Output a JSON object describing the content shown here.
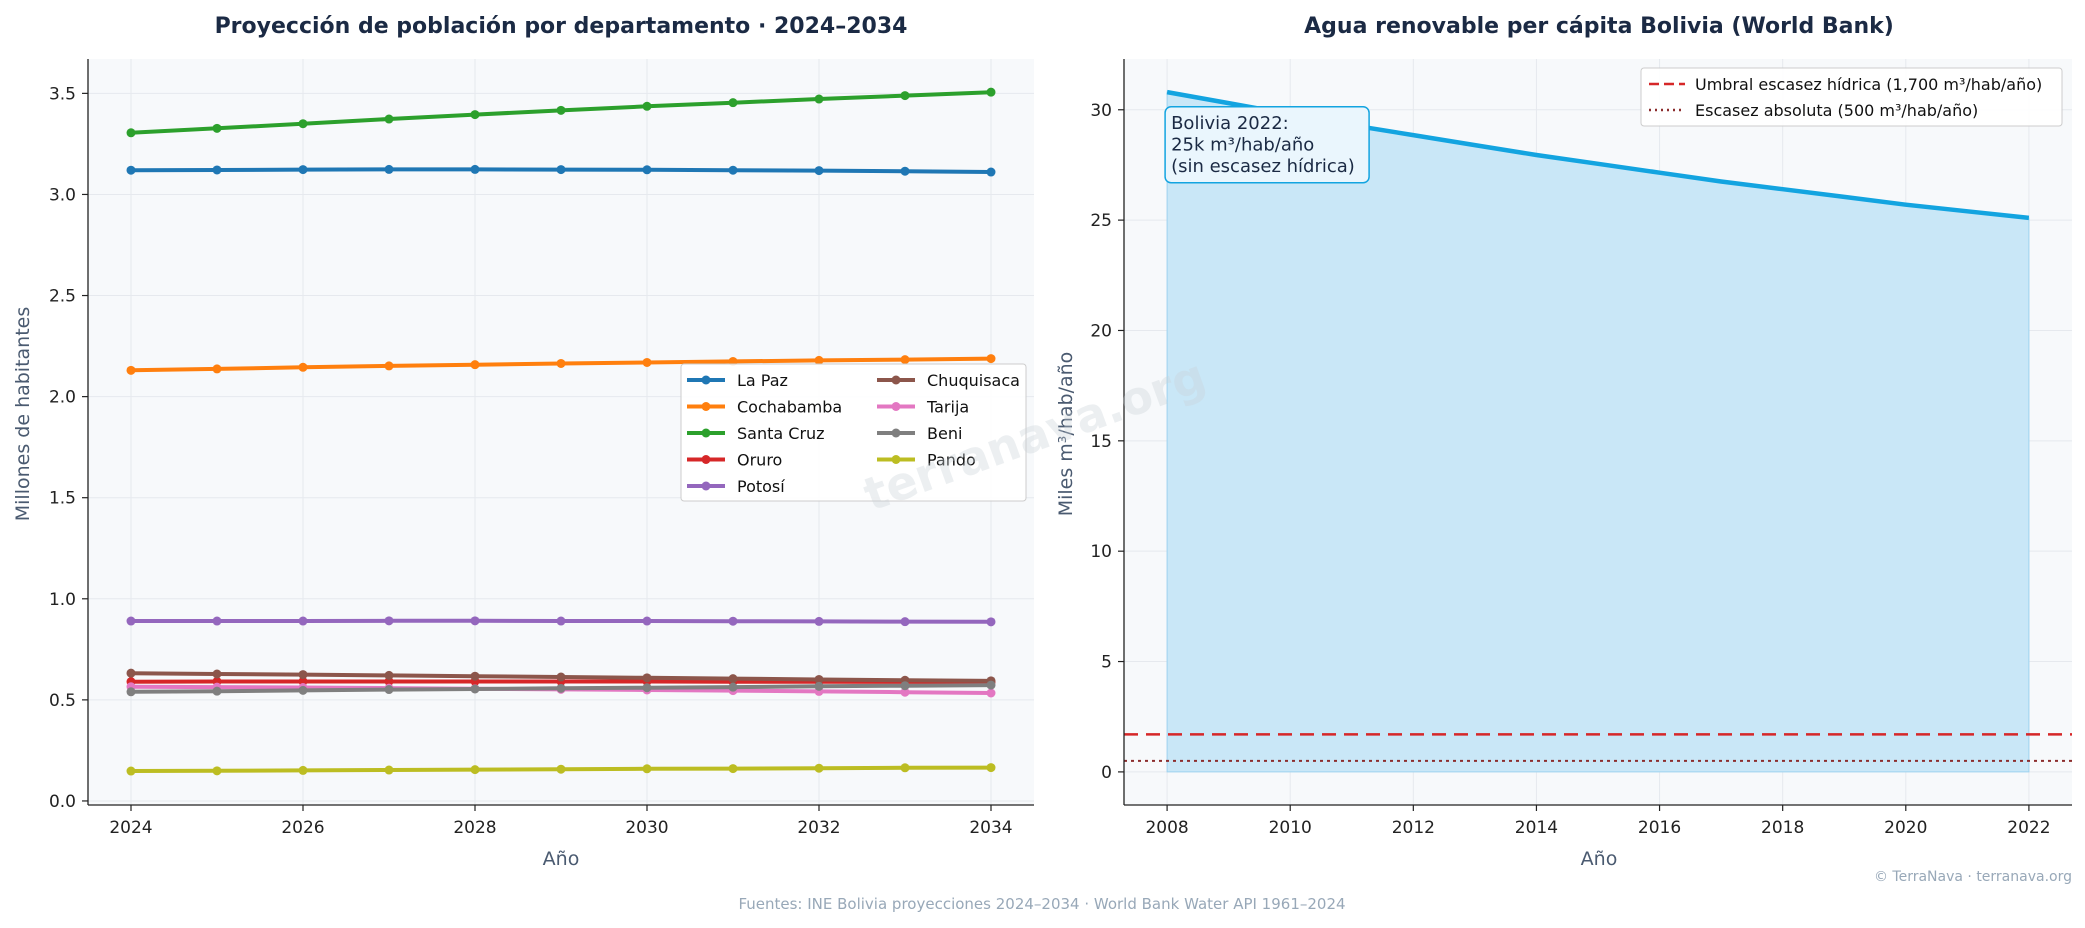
{
  "colors": {
    "plot_bg": "#f7f9fb",
    "title": "#1b2a44",
    "axis_label": "#4a5a70",
    "tick": "#222222",
    "footer": "#98a8b8",
    "fill": "#c9e7f7",
    "line": "#13a4e0",
    "threshold": "#d62728",
    "absolute": "#8c2d2d"
  },
  "chart_data": [
    {
      "type": "line",
      "title": "Proyección de población por departamento · 2024–2034",
      "xlabel": "Año",
      "ylabel": "Millones de habitantes",
      "xlim": [
        2023.5,
        2034.5
      ],
      "ylim": [
        -0.02,
        3.67
      ],
      "x_ticks": [
        2024,
        2026,
        2028,
        2030,
        2032,
        2034
      ],
      "y_ticks": [
        0.0,
        0.5,
        1.0,
        1.5,
        2.0,
        2.5,
        3.0,
        3.5
      ],
      "y_tick_labels": [
        "0.0",
        "0.5",
        "1.0",
        "1.5",
        "2.0",
        "2.5",
        "3.0",
        "3.5"
      ],
      "grid": true,
      "legend": "center-right",
      "x": [
        2024,
        2025,
        2026,
        2027,
        2028,
        2029,
        2030,
        2031,
        2032,
        2033,
        2034
      ],
      "series": [
        {
          "name": "La Paz",
          "color": "#1f77b4",
          "values": [
            3.12,
            3.121,
            3.123,
            3.124,
            3.124,
            3.123,
            3.122,
            3.12,
            3.118,
            3.115,
            3.111
          ]
        },
        {
          "name": "Cochabamba",
          "color": "#ff7f0e",
          "values": [
            2.13,
            2.137,
            2.145,
            2.152,
            2.158,
            2.164,
            2.169,
            2.174,
            2.179,
            2.183,
            2.188
          ]
        },
        {
          "name": "Santa Cruz",
          "color": "#2ca02c",
          "values": [
            3.305,
            3.327,
            3.35,
            3.373,
            3.395,
            3.416,
            3.436,
            3.454,
            3.472,
            3.489,
            3.506
          ]
        },
        {
          "name": "Oruro",
          "color": "#d62728",
          "values": [
            0.59,
            0.591,
            0.591,
            0.591,
            0.591,
            0.591,
            0.591,
            0.59,
            0.59,
            0.589,
            0.588
          ]
        },
        {
          "name": "Potosí",
          "color": "#9467bd",
          "values": [
            0.89,
            0.89,
            0.89,
            0.891,
            0.891,
            0.89,
            0.89,
            0.889,
            0.888,
            0.887,
            0.886
          ]
        },
        {
          "name": "Chuquisaca",
          "color": "#8c564b",
          "values": [
            0.632,
            0.628,
            0.625,
            0.621,
            0.617,
            0.613,
            0.609,
            0.605,
            0.601,
            0.597,
            0.594
          ]
        },
        {
          "name": "Tarija",
          "color": "#e377c2",
          "values": [
            0.565,
            0.563,
            0.561,
            0.558,
            0.555,
            0.552,
            0.549,
            0.546,
            0.542,
            0.538,
            0.534
          ]
        },
        {
          "name": "Beni",
          "color": "#7f7f7f",
          "values": [
            0.54,
            0.543,
            0.547,
            0.551,
            0.554,
            0.557,
            0.56,
            0.563,
            0.567,
            0.57,
            0.573
          ]
        },
        {
          "name": "Pando",
          "color": "#bcbd22",
          "values": [
            0.148,
            0.149,
            0.151,
            0.153,
            0.155,
            0.157,
            0.159,
            0.16,
            0.162,
            0.164,
            0.165
          ]
        }
      ]
    },
    {
      "type": "area",
      "title": "Agua renovable per cápita Bolivia (World Bank)",
      "xlabel": "Año",
      "ylabel": "Miles m³/hab/año",
      "xlim": [
        2007.3,
        2022.7
      ],
      "ylim": [
        -1.5,
        32.3
      ],
      "x_ticks": [
        2008,
        2010,
        2012,
        2014,
        2016,
        2018,
        2020,
        2022
      ],
      "y_ticks": [
        0,
        5,
        10,
        15,
        20,
        25,
        30
      ],
      "grid": true,
      "legend": "top-right",
      "x": [
        2008,
        2009,
        2010,
        2011,
        2012,
        2013,
        2014,
        2015,
        2016,
        2017,
        2018,
        2019,
        2020,
        2021,
        2022
      ],
      "values": [
        30.8,
        30.3,
        29.8,
        29.3,
        28.85,
        28.4,
        27.95,
        27.55,
        27.15,
        26.75,
        26.4,
        26.05,
        25.7,
        25.4,
        25.1
      ],
      "reference_lines": [
        {
          "name": "Umbral escasez hídrica (1,700 m³/hab/año)",
          "y": 1.7,
          "style": "dashed"
        },
        {
          "name": "Escasez absoluta (500 m³/hab/año)",
          "y": 0.5,
          "style": "dotted"
        }
      ],
      "annotation": {
        "lines": [
          "Bolivia 2022:",
          "25k m³/hab/año",
          "(sin escasez hídrica)"
        ],
        "x": 2008,
        "y": 30
      }
    }
  ],
  "watermark": "terranava.org",
  "credit": "© TerraNava · terranava.org",
  "footer": "Fuentes: INE Bolivia proyecciones 2024–2034 · World Bank Water API 1961–2024"
}
